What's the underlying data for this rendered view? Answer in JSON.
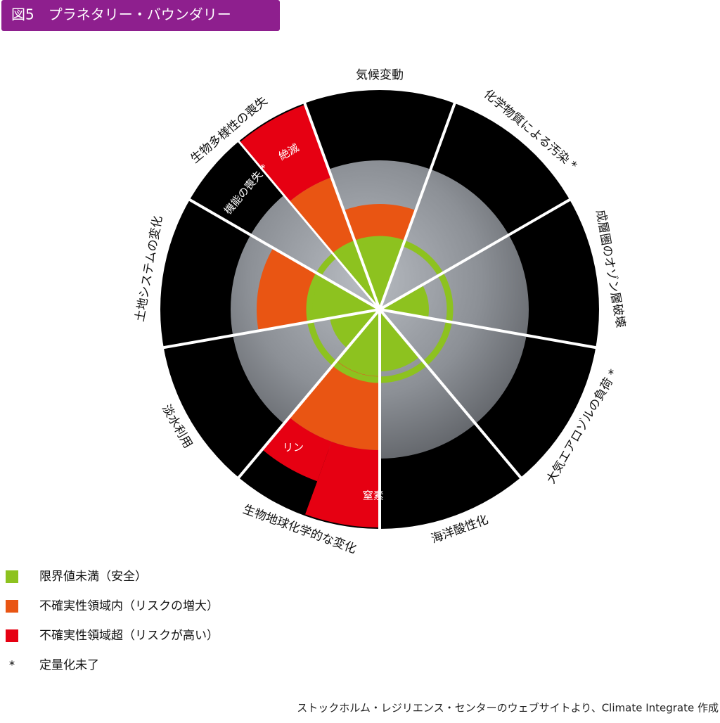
{
  "header": {
    "title": "図5　プラネタリー・バウンダリー"
  },
  "boundaries": [
    {
      "label": "気候変動"
    },
    {
      "label": "化学物質による汚染 *"
    },
    {
      "label": "成層圏のオゾン層破壊"
    },
    {
      "label": "大気エアロゾルの負荷 *"
    },
    {
      "label": "海洋酸性化"
    },
    {
      "label": "生物地球化学的な変化",
      "sublabels": [
        "リン",
        "窒素"
      ]
    },
    {
      "label": "淡水利用"
    },
    {
      "label": "土地システムの変化"
    },
    {
      "label": "生物多様性の喪失",
      "sublabels": [
        "絶滅",
        "機能の喪失 *"
      ]
    }
  ],
  "legend": [
    {
      "label": "限界値未満（安全）",
      "color": "#8dc21f"
    },
    {
      "label": "不確実性領域内（リスクの増大）",
      "color": "#e95513"
    },
    {
      "label": "不確実性領域超（リスクが高い）",
      "color": "#e60012"
    },
    {
      "symbol": "*",
      "label": "定量化未了"
    }
  ],
  "source": "ストックホルム・レジリエンス・センターのウェブサイトより、Climate Integrate 作成"
}
